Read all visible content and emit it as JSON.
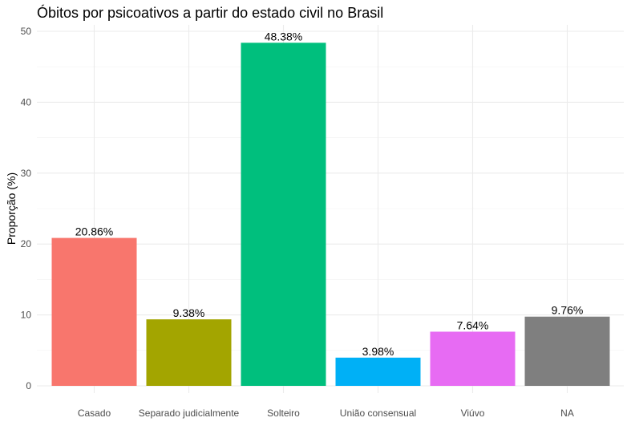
{
  "chart_data": {
    "type": "bar",
    "title": "Óbitos por psicoativos a partir do estado civil no Brasil",
    "xlabel": "",
    "ylabel": "Proporção (%)",
    "ylim": [
      0,
      50
    ],
    "yticks": [
      0,
      10,
      20,
      30,
      40,
      50
    ],
    "grid": true,
    "legend": "none",
    "categories": [
      "Casado",
      "Separado judicialmente",
      "Solteiro",
      "União consensual",
      "Viúvo",
      "NA"
    ],
    "values": [
      20.86,
      9.38,
      48.38,
      3.98,
      7.64,
      9.76
    ],
    "data_labels": [
      "20.86%",
      "9.38%",
      "48.38%",
      "3.98%",
      "7.64%",
      "9.76%"
    ],
    "colors": [
      "#F8766D",
      "#A3A500",
      "#00BF7D",
      "#00B0F6",
      "#E76BF3",
      "#7F7F7F"
    ]
  }
}
